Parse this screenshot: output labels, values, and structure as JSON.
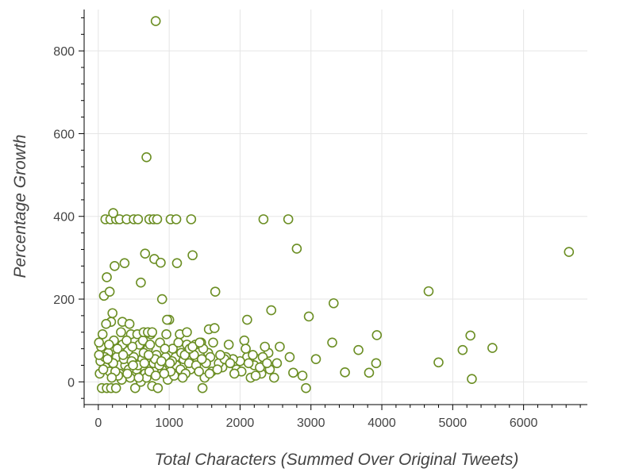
{
  "chart_data": {
    "type": "scatter",
    "xlabel": "Total Characters (Summed Over Original Tweets)",
    "ylabel": "Percentage Growth",
    "xlim": [
      -200,
      6900
    ],
    "ylim": [
      -55,
      900
    ],
    "x_ticks": [
      0,
      1000,
      2000,
      3000,
      4000,
      5000,
      6000
    ],
    "y_ticks": [
      0,
      200,
      400,
      600,
      800
    ],
    "grid": true,
    "marker_color": "#6b8e23",
    "points": [
      [
        810,
        872
      ],
      [
        680,
        543
      ],
      [
        6640,
        314
      ],
      [
        4660,
        219
      ],
      [
        2800,
        322
      ],
      [
        100,
        393
      ],
      [
        170,
        393
      ],
      [
        250,
        393
      ],
      [
        300,
        393
      ],
      [
        400,
        393
      ],
      [
        500,
        393
      ],
      [
        560,
        393
      ],
      [
        720,
        393
      ],
      [
        780,
        393
      ],
      [
        830,
        393
      ],
      [
        1020,
        393
      ],
      [
        1100,
        393
      ],
      [
        1310,
        393
      ],
      [
        2330,
        393
      ],
      [
        2680,
        393
      ],
      [
        210,
        408
      ],
      [
        660,
        310
      ],
      [
        790,
        297
      ],
      [
        880,
        288
      ],
      [
        1110,
        287
      ],
      [
        1330,
        306
      ],
      [
        370,
        287
      ],
      [
        230,
        280
      ],
      [
        120,
        253
      ],
      [
        600,
        240
      ],
      [
        80,
        208
      ],
      [
        160,
        218
      ],
      [
        1650,
        218
      ],
      [
        900,
        200
      ],
      [
        2440,
        173
      ],
      [
        3320,
        190
      ],
      [
        2970,
        158
      ],
      [
        2100,
        150
      ],
      [
        200,
        166
      ],
      [
        1560,
        127
      ],
      [
        1640,
        130
      ],
      [
        1840,
        90
      ],
      [
        3070,
        55
      ],
      [
        3300,
        95
      ],
      [
        3480,
        23
      ],
      [
        3670,
        77
      ],
      [
        3820,
        22
      ],
      [
        3920,
        45
      ],
      [
        3930,
        113
      ],
      [
        4800,
        47
      ],
      [
        5140,
        77
      ],
      [
        5250,
        112
      ],
      [
        5270,
        7
      ],
      [
        5560,
        82
      ],
      [
        2930,
        -15
      ],
      [
        2880,
        15
      ],
      [
        2750,
        22
      ],
      [
        2700,
        60
      ],
      [
        2560,
        85
      ],
      [
        2520,
        45
      ],
      [
        2400,
        70
      ],
      [
        2350,
        85
      ],
      [
        2300,
        20
      ],
      [
        2250,
        55
      ],
      [
        2200,
        40
      ],
      [
        2150,
        10
      ],
      [
        2100,
        60
      ],
      [
        2060,
        100
      ],
      [
        2000,
        50
      ],
      [
        1950,
        30
      ],
      [
        1900,
        55
      ],
      [
        1800,
        60
      ],
      [
        1750,
        35
      ],
      [
        1700,
        45
      ],
      [
        1600,
        25
      ],
      [
        1550,
        70
      ],
      [
        1500,
        10
      ],
      [
        1470,
        -15
      ],
      [
        1450,
        95
      ],
      [
        1400,
        50
      ],
      [
        1350,
        65
      ],
      [
        1300,
        30
      ],
      [
        1250,
        90
      ],
      [
        1200,
        55
      ],
      [
        1150,
        115
      ],
      [
        1100,
        40
      ],
      [
        1050,
        80
      ],
      [
        1000,
        150
      ],
      [
        950,
        60
      ],
      [
        900,
        30
      ],
      [
        870,
        95
      ],
      [
        820,
        65
      ],
      [
        780,
        45
      ],
      [
        740,
        115
      ],
      [
        700,
        80
      ],
      [
        660,
        20
      ],
      [
        620,
        55
      ],
      [
        580,
        90
      ],
      [
        540,
        30
      ],
      [
        500,
        60
      ],
      [
        460,
        115
      ],
      [
        420,
        75
      ],
      [
        380,
        40
      ],
      [
        340,
        90
      ],
      [
        300,
        20
      ],
      [
        260,
        60
      ],
      [
        220,
        100
      ],
      [
        180,
        145
      ],
      [
        140,
        70
      ],
      [
        100,
        35
      ],
      [
        60,
        115
      ],
      [
        40,
        85
      ],
      [
        30,
        50
      ],
      [
        20,
        20
      ],
      [
        50,
        -15
      ],
      [
        120,
        -15
      ],
      [
        180,
        -15
      ],
      [
        250,
        -15
      ],
      [
        330,
        5
      ],
      [
        450,
        10
      ],
      [
        520,
        -15
      ],
      [
        600,
        0
      ],
      [
        680,
        10
      ],
      [
        760,
        -10
      ],
      [
        840,
        -15
      ],
      [
        980,
        5
      ],
      [
        1070,
        15
      ],
      [
        1160,
        30
      ],
      [
        1230,
        20
      ],
      [
        160,
        25
      ],
      [
        210,
        45
      ],
      [
        280,
        15
      ],
      [
        360,
        55
      ],
      [
        430,
        30
      ],
      [
        480,
        85
      ],
      [
        560,
        40
      ],
      [
        640,
        70
      ],
      [
        720,
        25
      ],
      [
        800,
        55
      ],
      [
        860,
        40
      ],
      [
        940,
        80
      ],
      [
        1020,
        25
      ],
      [
        1090,
        60
      ],
      [
        1170,
        70
      ],
      [
        1280,
        45
      ],
      [
        1380,
        40
      ],
      [
        1480,
        80
      ],
      [
        1580,
        60
      ],
      [
        1680,
        30
      ],
      [
        1780,
        55
      ],
      [
        2020,
        25
      ],
      [
        2120,
        45
      ],
      [
        2220,
        15
      ],
      [
        2320,
        60
      ],
      [
        2420,
        30
      ],
      [
        2480,
        10
      ],
      [
        90,
        60
      ],
      [
        150,
        90
      ],
      [
        240,
        25
      ],
      [
        320,
        120
      ],
      [
        400,
        100
      ],
      [
        470,
        50
      ],
      [
        550,
        115
      ],
      [
        630,
        100
      ],
      [
        710,
        65
      ],
      [
        890,
        50
      ],
      [
        960,
        115
      ],
      [
        1040,
        50
      ],
      [
        1130,
        95
      ],
      [
        1220,
        65
      ],
      [
        1420,
        25
      ],
      [
        1520,
        45
      ],
      [
        1620,
        95
      ],
      [
        1720,
        65
      ],
      [
        1860,
        45
      ],
      [
        1920,
        20
      ],
      [
        2080,
        80
      ],
      [
        2180,
        65
      ],
      [
        2280,
        35
      ],
      [
        2380,
        45
      ],
      [
        10,
        95
      ],
      [
        10,
        65
      ],
      [
        70,
        30
      ],
      [
        130,
        55
      ],
      [
        190,
        10
      ],
      [
        270,
        80
      ],
      [
        350,
        65
      ],
      [
        410,
        20
      ],
      [
        490,
        40
      ],
      [
        570,
        10
      ],
      [
        650,
        45
      ],
      [
        730,
        90
      ],
      [
        810,
        15
      ],
      [
        930,
        20
      ],
      [
        1010,
        45
      ],
      [
        1190,
        10
      ],
      [
        1290,
        80
      ],
      [
        1370,
        90
      ],
      [
        1460,
        55
      ],
      [
        1570,
        20
      ],
      [
        110,
        140
      ],
      [
        340,
        145
      ],
      [
        440,
        140
      ],
      [
        970,
        150
      ],
      [
        640,
        120
      ],
      [
        700,
        120
      ],
      [
        760,
        120
      ],
      [
        1250,
        120
      ],
      [
        1330,
        85
      ],
      [
        1430,
        95
      ]
    ]
  }
}
